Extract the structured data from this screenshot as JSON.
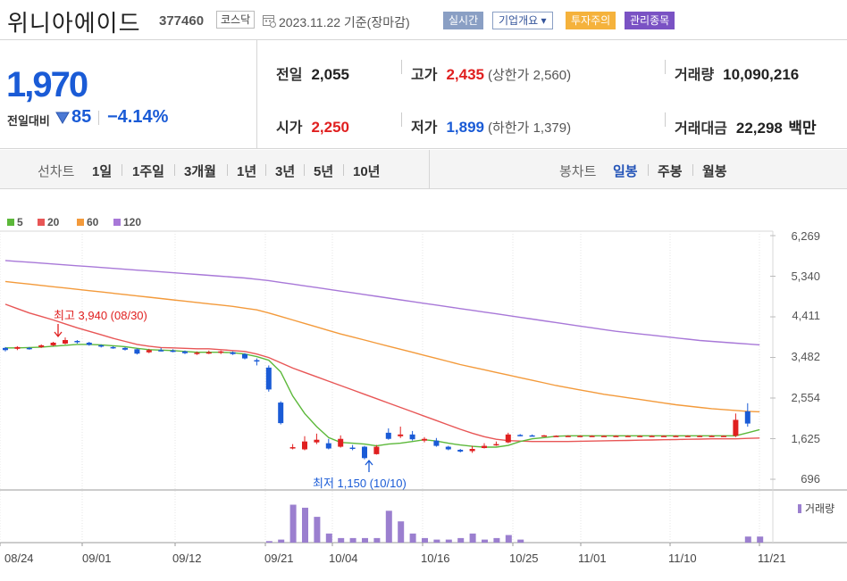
{
  "header": {
    "name": "위니아에이드",
    "code": "377460",
    "market": "코스닥",
    "date": "2023.11.22",
    "date_suffix": "기준(장마감)",
    "badges": [
      "실시간",
      "기업개요 ▾",
      "투자주의",
      "관리종목"
    ]
  },
  "summary": {
    "price": "1,970",
    "change_label": "전일대비",
    "change_value": "85",
    "change_pct": "−4.14%",
    "prev_close_label": "전일",
    "prev_close": "2,055",
    "open_label": "시가",
    "open": "2,250",
    "high_label": "고가",
    "high": "2,435",
    "upper_limit": "(상한가 2,560)",
    "low_label": "저가",
    "low": "1,899",
    "lower_limit": "(하한가 1,379)",
    "volume_label": "거래량",
    "volume": "10,090,216",
    "amount_label": "거래대금",
    "amount": "22,298",
    "amount_unit": "백만"
  },
  "toolbar": {
    "line_label": "선차트",
    "line_periods": [
      "1일",
      "1주일",
      "3개월",
      "1년",
      "3년",
      "5년",
      "10년"
    ],
    "candle_label": "봉차트",
    "candle_periods": [
      "일봉",
      "주봉",
      "월봉"
    ],
    "selected_candle": "일봉"
  },
  "colors": {
    "up": "#e02020",
    "down": "#1a5bd6",
    "ma5": "#5cb83a",
    "ma20": "#e85656",
    "ma60": "#f39a3b",
    "ma120": "#a878d8",
    "volume": "#9b7fcf"
  },
  "chart_data": {
    "type": "candlestick",
    "legend": [
      "5",
      "20",
      "60",
      "120"
    ],
    "y_ticks": [
      "6,269",
      "5,340",
      "4,411",
      "3,482",
      "2,554",
      "1,625",
      "696"
    ],
    "ylim": [
      696,
      6269
    ],
    "x_ticks": [
      "08/24",
      "09/01",
      "09/12",
      "09/21",
      "10/04",
      "10/16",
      "10/25",
      "11/01",
      "11/10",
      "11/21"
    ],
    "high_annotation": "최고 3,940 (08/30)",
    "low_annotation": "최저 1,150 (10/10)",
    "volume_label": "거래량",
    "candles": [
      {
        "o": 3700,
        "c": 3650,
        "h": 3720,
        "l": 3620
      },
      {
        "o": 3680,
        "c": 3720,
        "h": 3740,
        "l": 3650
      },
      {
        "o": 3700,
        "c": 3690,
        "h": 3720,
        "l": 3660
      },
      {
        "o": 3720,
        "c": 3760,
        "h": 3780,
        "l": 3700
      },
      {
        "o": 3760,
        "c": 3820,
        "h": 3840,
        "l": 3740
      },
      {
        "o": 3800,
        "c": 3880,
        "h": 3940,
        "l": 3780
      },
      {
        "o": 3860,
        "c": 3830,
        "h": 3880,
        "l": 3800
      },
      {
        "o": 3820,
        "c": 3770,
        "h": 3840,
        "l": 3750
      },
      {
        "o": 3760,
        "c": 3730,
        "h": 3780,
        "l": 3710
      },
      {
        "o": 3720,
        "c": 3700,
        "h": 3740,
        "l": 3680
      },
      {
        "o": 3700,
        "c": 3660,
        "h": 3720,
        "l": 3640
      },
      {
        "o": 3670,
        "c": 3570,
        "h": 3690,
        "l": 3550
      },
      {
        "o": 3600,
        "c": 3650,
        "h": 3680,
        "l": 3580
      },
      {
        "o": 3650,
        "c": 3640,
        "h": 3700,
        "l": 3620
      },
      {
        "o": 3640,
        "c": 3620,
        "h": 3670,
        "l": 3600
      },
      {
        "o": 3620,
        "c": 3580,
        "h": 3640,
        "l": 3560
      },
      {
        "o": 3560,
        "c": 3590,
        "h": 3620,
        "l": 3540
      },
      {
        "o": 3600,
        "c": 3600,
        "h": 3640,
        "l": 3560
      },
      {
        "o": 3590,
        "c": 3620,
        "h": 3640,
        "l": 3560
      },
      {
        "o": 3600,
        "c": 3560,
        "h": 3620,
        "l": 3540
      },
      {
        "o": 3560,
        "c": 3460,
        "h": 3580,
        "l": 3440
      },
      {
        "o": 3420,
        "c": 3400,
        "h": 3460,
        "l": 3300
      },
      {
        "o": 3250,
        "c": 2750,
        "h": 3300,
        "l": 2700
      },
      {
        "o": 2450,
        "c": 1980,
        "h": 2480,
        "l": 1950
      },
      {
        "o": 1420,
        "c": 1430,
        "h": 1500,
        "l": 1380
      },
      {
        "o": 1380,
        "c": 1560,
        "h": 1680,
        "l": 1360
      },
      {
        "o": 1540,
        "c": 1600,
        "h": 1740,
        "l": 1500
      },
      {
        "o": 1520,
        "c": 1400,
        "h": 1620,
        "l": 1380
      },
      {
        "o": 1440,
        "c": 1620,
        "h": 1700,
        "l": 1420
      },
      {
        "o": 1420,
        "c": 1400,
        "h": 1480,
        "l": 1360
      },
      {
        "o": 1440,
        "c": 1180,
        "h": 1460,
        "l": 1150
      },
      {
        "o": 1270,
        "c": 1440,
        "h": 1480,
        "l": 1260
      },
      {
        "o": 1760,
        "c": 1620,
        "h": 1860,
        "l": 1600
      },
      {
        "o": 1680,
        "c": 1720,
        "h": 1900,
        "l": 1640
      },
      {
        "o": 1720,
        "c": 1610,
        "h": 1800,
        "l": 1580
      },
      {
        "o": 1580,
        "c": 1620,
        "h": 1660,
        "l": 1540
      },
      {
        "o": 1580,
        "c": 1460,
        "h": 1640,
        "l": 1440
      },
      {
        "o": 1440,
        "c": 1380,
        "h": 1460,
        "l": 1360
      },
      {
        "o": 1370,
        "c": 1330,
        "h": 1390,
        "l": 1310
      },
      {
        "o": 1340,
        "c": 1390,
        "h": 1460,
        "l": 1300
      },
      {
        "o": 1410,
        "c": 1460,
        "h": 1520,
        "l": 1400
      },
      {
        "o": 1480,
        "c": 1500,
        "h": 1560,
        "l": 1460
      },
      {
        "o": 1540,
        "c": 1720,
        "h": 1760,
        "l": 1520
      },
      {
        "o": 1710,
        "c": 1700,
        "h": 1730,
        "l": 1680
      },
      {
        "o": 1700,
        "c": 1690,
        "h": 1720,
        "l": 1680
      },
      {
        "o": 1690,
        "c": 1700,
        "h": 1710,
        "l": 1680
      },
      {
        "o": 1690,
        "c": 1690,
        "h": 1700,
        "l": 1680
      },
      {
        "o": 1690,
        "c": 1690,
        "h": 1700,
        "l": 1680
      },
      {
        "o": 1690,
        "c": 1690,
        "h": 1700,
        "l": 1680
      },
      {
        "o": 1690,
        "c": 1690,
        "h": 1700,
        "l": 1680
      },
      {
        "o": 1690,
        "c": 1690,
        "h": 1700,
        "l": 1680
      },
      {
        "o": 1690,
        "c": 1690,
        "h": 1700,
        "l": 1680
      },
      {
        "o": 1690,
        "c": 1690,
        "h": 1700,
        "l": 1680
      },
      {
        "o": 1690,
        "c": 1690,
        "h": 1700,
        "l": 1680
      },
      {
        "o": 1690,
        "c": 1690,
        "h": 1700,
        "l": 1680
      },
      {
        "o": 1690,
        "c": 1690,
        "h": 1700,
        "l": 1680
      },
      {
        "o": 1690,
        "c": 1690,
        "h": 1700,
        "l": 1680
      },
      {
        "o": 1690,
        "c": 1690,
        "h": 1700,
        "l": 1680
      },
      {
        "o": 1690,
        "c": 1690,
        "h": 1700,
        "l": 1680
      },
      {
        "o": 1690,
        "c": 1690,
        "h": 1700,
        "l": 1680
      },
      {
        "o": 1690,
        "c": 1690,
        "h": 1700,
        "l": 1680
      },
      {
        "o": 1690,
        "c": 2055,
        "h": 2200,
        "l": 1660
      },
      {
        "o": 2250,
        "c": 1970,
        "h": 2435,
        "l": 1899
      }
    ],
    "volume": [
      0,
      0,
      0,
      0,
      0,
      0,
      0,
      0,
      0,
      0,
      0,
      0,
      0,
      0,
      0,
      0,
      0,
      0,
      0,
      0,
      0,
      0,
      1,
      2,
      25,
      23,
      17,
      6,
      3,
      3,
      3,
      3,
      21,
      14,
      6,
      3,
      2,
      2,
      3,
      6,
      2,
      3,
      5,
      2,
      0,
      0,
      0,
      0,
      0,
      0,
      0,
      0,
      0,
      0,
      0,
      0,
      0,
      0,
      0,
      0,
      0,
      0,
      4,
      4
    ],
    "ma5": [
      3700,
      3700,
      3710,
      3720,
      3740,
      3760,
      3780,
      3780,
      3770,
      3750,
      3730,
      3690,
      3660,
      3650,
      3640,
      3620,
      3600,
      3600,
      3600,
      3590,
      3560,
      3500,
      3420,
      3150,
      2600,
      2200,
      1900,
      1650,
      1540,
      1520,
      1500,
      1460,
      1500,
      1520,
      1560,
      1600,
      1570,
      1520,
      1480,
      1450,
      1430,
      1430,
      1470,
      1560,
      1620,
      1650,
      1680,
      1690,
      1690,
      1690,
      1690,
      1690,
      1690,
      1690,
      1690,
      1690,
      1690,
      1690,
      1690,
      1690,
      1690,
      1690,
      1760,
      1830
    ],
    "ma20": [
      4700,
      4600,
      4500,
      4420,
      4340,
      4250,
      4160,
      4080,
      4000,
      3920,
      3850,
      3780,
      3740,
      3710,
      3700,
      3690,
      3680,
      3680,
      3660,
      3640,
      3620,
      3560,
      3480,
      3360,
      3240,
      3140,
      3040,
      2940,
      2840,
      2740,
      2640,
      2540,
      2440,
      2340,
      2240,
      2140,
      2040,
      1940,
      1840,
      1750,
      1670,
      1610,
      1580,
      1570,
      1560,
      1560,
      1560,
      1560,
      1565,
      1570,
      1575,
      1580,
      1585,
      1590,
      1595,
      1600,
      1605,
      1610,
      1615,
      1620,
      1620,
      1620,
      1630,
      1640
    ],
    "ma60": [
      5220,
      5190,
      5160,
      5130,
      5100,
      5070,
      5040,
      5010,
      4980,
      4950,
      4920,
      4890,
      4860,
      4830,
      4800,
      4770,
      4740,
      4710,
      4680,
      4650,
      4610,
      4570,
      4500,
      4420,
      4340,
      4260,
      4180,
      4100,
      4020,
      3950,
      3880,
      3810,
      3740,
      3670,
      3600,
      3530,
      3460,
      3390,
      3320,
      3260,
      3200,
      3140,
      3080,
      3020,
      2960,
      2900,
      2840,
      2790,
      2740,
      2690,
      2640,
      2600,
      2560,
      2520,
      2480,
      2440,
      2400,
      2370,
      2340,
      2310,
      2290,
      2270,
      2250,
      2240
    ],
    "ma120": [
      5700,
      5680,
      5660,
      5640,
      5620,
      5600,
      5580,
      5560,
      5540,
      5520,
      5500,
      5480,
      5460,
      5440,
      5420,
      5400,
      5380,
      5360,
      5340,
      5320,
      5300,
      5270,
      5240,
      5200,
      5160,
      5120,
      5080,
      5040,
      5000,
      4960,
      4920,
      4880,
      4840,
      4800,
      4760,
      4720,
      4680,
      4640,
      4600,
      4560,
      4520,
      4480,
      4440,
      4400,
      4360,
      4320,
      4280,
      4240,
      4200,
      4160,
      4120,
      4080,
      4050,
      4020,
      3990,
      3960,
      3930,
      3900,
      3870,
      3850,
      3830,
      3810,
      3790,
      3770
    ]
  }
}
